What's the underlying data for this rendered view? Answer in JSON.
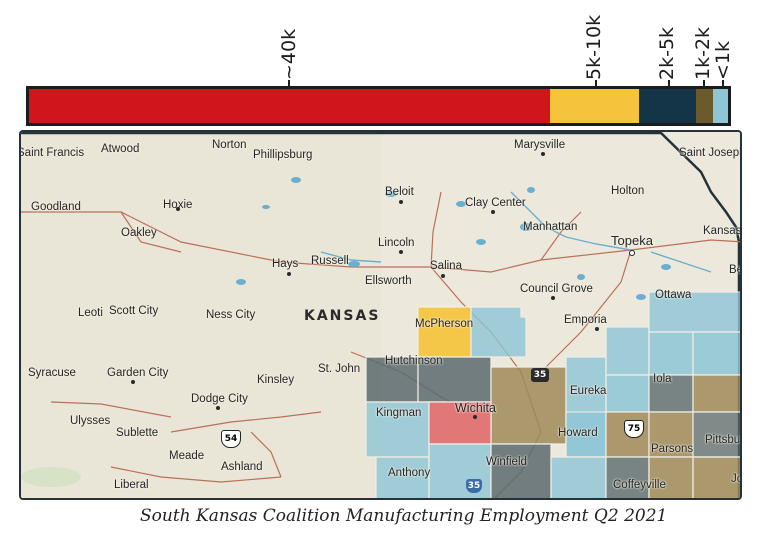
{
  "legend": {
    "bins": [
      {
        "label": "~40k",
        "color": "#d0161c",
        "share": 74.6
      },
      {
        "label": "5k-10k",
        "color": "#f5c43a",
        "share": 12.6
      },
      {
        "label": "2k-5k",
        "color": "#143447",
        "share": 8.2
      },
      {
        "label": "1k-2k",
        "color": "#6b5a2c",
        "share": 2.4
      },
      {
        "label": "<1k",
        "color": "#8ec6d6",
        "share": 2.2
      }
    ]
  },
  "map": {
    "state_label": "KANSAS",
    "cities": [
      "Saint Francis",
      "Atwood",
      "Norton",
      "Phillipsburg",
      "Marysville",
      "Saint Joseph",
      "Goodland",
      "Hoxie",
      "Beloit",
      "Clay Center",
      "Holton",
      "Oakley",
      "Manhattan",
      "Lincoln",
      "Topeka",
      "Kansas",
      "Hays",
      "Russell",
      "Salina",
      "Ellsworth",
      "Council Grove",
      "Ottawa",
      "Leoti",
      "Scott City",
      "Ness City",
      "McPherson",
      "Emporia",
      "Syracuse",
      "Garden City",
      "Hutchinson",
      "St. John",
      "Kinsley",
      "Eureka",
      "Iola",
      "Dodge City",
      "Kingman",
      "Wichita",
      "Ulysses",
      "Sublette",
      "Howard",
      "Pittsburg",
      "Meade",
      "Ashland",
      "Parsons",
      "Anthony",
      "Winfield",
      "Coffeyville",
      "Liberal",
      "Be",
      "Jo"
    ],
    "shields": [
      "54",
      "35",
      "35",
      "75"
    ]
  },
  "caption": "South Kansas Coalition Manufacturing Employment Q2 2021",
  "colors": {
    "land": "#ece9dc",
    "water": "#6aaed0",
    "road": "#b9705a",
    "border": "#26323a"
  }
}
